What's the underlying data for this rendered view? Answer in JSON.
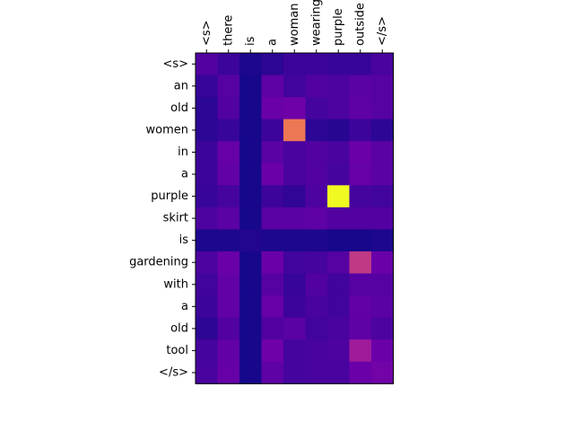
{
  "chart_data": {
    "type": "heatmap",
    "title": "",
    "xlabel": "",
    "ylabel": "",
    "colormap": "plasma",
    "vrange": [
      0,
      1
    ],
    "x_labels": [
      "<s>",
      "there",
      "is",
      "a",
      "woman",
      "wearing",
      "purple",
      "outside",
      "</s>"
    ],
    "y_labels": [
      "<s>",
      "an",
      "old",
      "women",
      "in",
      "a",
      "purple",
      "skirt",
      "is",
      "gardening",
      "with",
      "a",
      "old",
      "tool",
      "</s>"
    ],
    "x_axis_position": "top",
    "x_label_rotation": 90,
    "grid": false,
    "legend": "none",
    "values": [
      [
        0.14,
        0.09,
        0.03,
        0.06,
        0.09,
        0.09,
        0.08,
        0.08,
        0.12
      ],
      [
        0.08,
        0.15,
        0.02,
        0.17,
        0.1,
        0.14,
        0.13,
        0.16,
        0.15
      ],
      [
        0.06,
        0.14,
        0.02,
        0.2,
        0.21,
        0.11,
        0.13,
        0.17,
        0.15
      ],
      [
        0.06,
        0.08,
        0.02,
        0.09,
        0.66,
        0.06,
        0.05,
        0.09,
        0.06
      ],
      [
        0.09,
        0.19,
        0.02,
        0.16,
        0.12,
        0.14,
        0.12,
        0.2,
        0.16
      ],
      [
        0.09,
        0.18,
        0.02,
        0.2,
        0.12,
        0.14,
        0.11,
        0.19,
        0.16
      ],
      [
        0.08,
        0.11,
        0.02,
        0.09,
        0.07,
        0.13,
        1.0,
        0.11,
        0.1
      ],
      [
        0.13,
        0.16,
        0.02,
        0.16,
        0.16,
        0.17,
        0.14,
        0.14,
        0.14
      ],
      [
        0.03,
        0.03,
        0.04,
        0.03,
        0.03,
        0.03,
        0.02,
        0.02,
        0.03
      ],
      [
        0.13,
        0.2,
        0.02,
        0.2,
        0.1,
        0.11,
        0.15,
        0.45,
        0.2
      ],
      [
        0.1,
        0.18,
        0.02,
        0.15,
        0.08,
        0.14,
        0.1,
        0.15,
        0.15
      ],
      [
        0.09,
        0.18,
        0.02,
        0.19,
        0.09,
        0.12,
        0.1,
        0.18,
        0.16
      ],
      [
        0.06,
        0.14,
        0.02,
        0.14,
        0.16,
        0.1,
        0.12,
        0.17,
        0.13
      ],
      [
        0.11,
        0.18,
        0.02,
        0.21,
        0.11,
        0.12,
        0.13,
        0.35,
        0.2
      ],
      [
        0.12,
        0.19,
        0.02,
        0.17,
        0.11,
        0.12,
        0.12,
        0.2,
        0.22
      ]
    ]
  }
}
